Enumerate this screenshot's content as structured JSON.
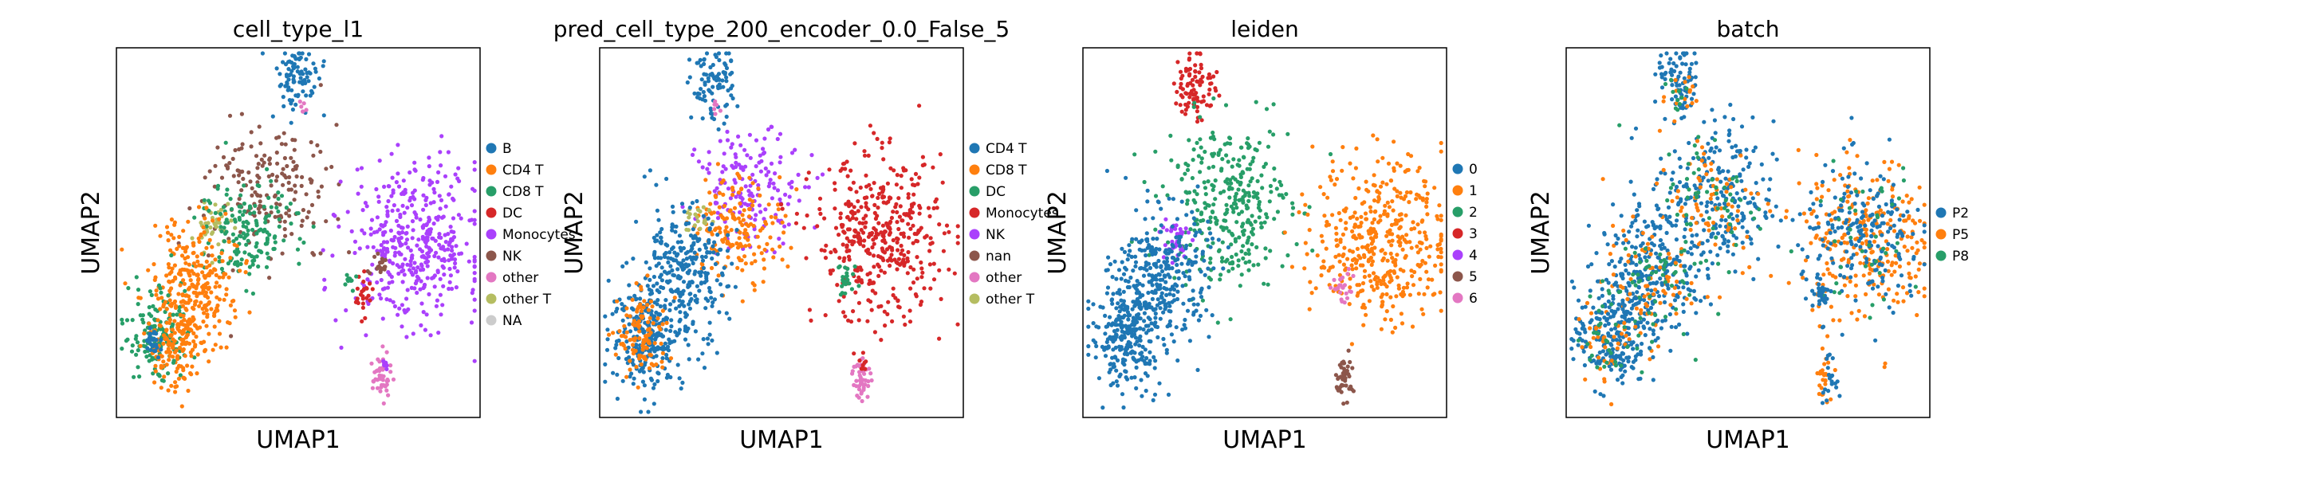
{
  "chart_data": [
    {
      "type": "scatter",
      "title": "cell_type_l1",
      "xlabel": "UMAP1",
      "ylabel": "UMAP2",
      "legend": {
        "position": "right",
        "entries": [
          {
            "label": "B",
            "color": "#1f77b4"
          },
          {
            "label": "CD4 T",
            "color": "#ff7f0e"
          },
          {
            "label": "CD8 T",
            "color": "#279e68"
          },
          {
            "label": "DC",
            "color": "#d62728"
          },
          {
            "label": "Monocytes",
            "color": "#aa40fc"
          },
          {
            "label": "NK",
            "color": "#8c564b"
          },
          {
            "label": "other",
            "color": "#e377c2"
          },
          {
            "label": "other T",
            "color": "#b5bd61"
          },
          {
            "label": "NA",
            "color": "#cccccc"
          }
        ]
      },
      "clusters": [
        {
          "color": "#1f77b4",
          "rx": 0.5,
          "ry": 0.92,
          "w": 0.06,
          "h": 0.1,
          "n": 90
        },
        {
          "color": "#e377c2",
          "rx": 0.51,
          "ry": 0.84,
          "w": 0.01,
          "h": 0.03,
          "n": 6
        },
        {
          "color": "#8c564b",
          "rx": 0.42,
          "ry": 0.62,
          "w": 0.17,
          "h": 0.17,
          "n": 180
        },
        {
          "color": "#b5bd61",
          "rx": 0.27,
          "ry": 0.52,
          "w": 0.06,
          "h": 0.06,
          "n": 40
        },
        {
          "color": "#279e68",
          "rx": 0.36,
          "ry": 0.5,
          "w": 0.14,
          "h": 0.14,
          "n": 160
        },
        {
          "color": "#ff7f0e",
          "rx": 0.22,
          "ry": 0.36,
          "w": 0.12,
          "h": 0.18,
          "n": 260
        },
        {
          "color": "#279e68",
          "rx": 0.11,
          "ry": 0.22,
          "w": 0.08,
          "h": 0.12,
          "n": 150
        },
        {
          "color": "#ff7f0e",
          "rx": 0.16,
          "ry": 0.2,
          "w": 0.08,
          "h": 0.13,
          "n": 160
        },
        {
          "color": "#1f77b4",
          "rx": 0.1,
          "ry": 0.2,
          "w": 0.02,
          "h": 0.05,
          "n": 30
        },
        {
          "color": "#aa40fc",
          "rx": 0.82,
          "ry": 0.47,
          "w": 0.18,
          "h": 0.21,
          "n": 420
        },
        {
          "color": "#8c564b",
          "rx": 0.72,
          "ry": 0.41,
          "w": 0.03,
          "h": 0.05,
          "n": 20
        },
        {
          "color": "#d62728",
          "rx": 0.68,
          "ry": 0.33,
          "w": 0.025,
          "h": 0.05,
          "n": 25
        },
        {
          "color": "#279e68",
          "rx": 0.64,
          "ry": 0.37,
          "w": 0.02,
          "h": 0.03,
          "n": 10
        },
        {
          "color": "#e377c2",
          "rx": 0.73,
          "ry": 0.11,
          "w": 0.025,
          "h": 0.06,
          "n": 45
        },
        {
          "color": "#aa40fc",
          "rx": 0.74,
          "ry": 0.14,
          "w": 0.01,
          "h": 0.03,
          "n": 10
        }
      ]
    },
    {
      "type": "scatter",
      "title": "pred_cell_type_200_encoder_0.0_False_5",
      "xlabel": "UMAP1",
      "ylabel": "UMAP2",
      "legend": {
        "position": "right",
        "entries": [
          {
            "label": "CD4 T",
            "color": "#1f77b4"
          },
          {
            "label": "CD8 T",
            "color": "#ff7f0e"
          },
          {
            "label": "DC",
            "color": "#279e68"
          },
          {
            "label": "Monocytes",
            "color": "#d62728"
          },
          {
            "label": "NK",
            "color": "#aa40fc"
          },
          {
            "label": "nan",
            "color": "#8c564b"
          },
          {
            "label": "other",
            "color": "#e377c2"
          },
          {
            "label": "other T",
            "color": "#b5bd61"
          }
        ]
      },
      "clusters": [
        {
          "color": "#1f77b4",
          "rx": 0.31,
          "ry": 0.9,
          "w": 0.06,
          "h": 0.1,
          "n": 90
        },
        {
          "color": "#e377c2",
          "rx": 0.32,
          "ry": 0.84,
          "w": 0.01,
          "h": 0.03,
          "n": 6
        },
        {
          "color": "#aa40fc",
          "rx": 0.42,
          "ry": 0.62,
          "w": 0.15,
          "h": 0.15,
          "n": 170
        },
        {
          "color": "#ff7f0e",
          "rx": 0.38,
          "ry": 0.52,
          "w": 0.13,
          "h": 0.14,
          "n": 170
        },
        {
          "color": "#b5bd61",
          "rx": 0.27,
          "ry": 0.53,
          "w": 0.04,
          "h": 0.04,
          "n": 20
        },
        {
          "color": "#1f77b4",
          "rx": 0.22,
          "ry": 0.38,
          "w": 0.13,
          "h": 0.19,
          "n": 300
        },
        {
          "color": "#1f77b4",
          "rx": 0.13,
          "ry": 0.22,
          "w": 0.1,
          "h": 0.14,
          "n": 240
        },
        {
          "color": "#ff7f0e",
          "rx": 0.12,
          "ry": 0.22,
          "w": 0.07,
          "h": 0.12,
          "n": 110
        },
        {
          "color": "#d62728",
          "rx": 0.77,
          "ry": 0.48,
          "w": 0.18,
          "h": 0.22,
          "n": 420
        },
        {
          "color": "#279e68",
          "rx": 0.68,
          "ry": 0.37,
          "w": 0.03,
          "h": 0.05,
          "n": 25
        },
        {
          "color": "#e377c2",
          "rx": 0.72,
          "ry": 0.11,
          "w": 0.025,
          "h": 0.06,
          "n": 45
        },
        {
          "color": "#d62728",
          "rx": 0.73,
          "ry": 0.15,
          "w": 0.01,
          "h": 0.03,
          "n": 8
        }
      ]
    },
    {
      "type": "scatter",
      "title": "leiden",
      "xlabel": "UMAP1",
      "ylabel": "UMAP2",
      "legend": {
        "position": "right",
        "entries": [
          {
            "label": "0",
            "color": "#1f77b4"
          },
          {
            "label": "1",
            "color": "#ff7f0e"
          },
          {
            "label": "2",
            "color": "#279e68"
          },
          {
            "label": "3",
            "color": "#d62728"
          },
          {
            "label": "4",
            "color": "#aa40fc"
          },
          {
            "label": "5",
            "color": "#8c564b"
          },
          {
            "label": "6",
            "color": "#e377c2"
          }
        ]
      },
      "clusters": [
        {
          "color": "#d62728",
          "rx": 0.31,
          "ry": 0.9,
          "w": 0.06,
          "h": 0.1,
          "n": 90
        },
        {
          "color": "#279e68",
          "rx": 0.4,
          "ry": 0.58,
          "w": 0.17,
          "h": 0.22,
          "n": 330
        },
        {
          "color": "#aa40fc",
          "rx": 0.25,
          "ry": 0.48,
          "w": 0.04,
          "h": 0.07,
          "n": 40
        },
        {
          "color": "#1f77b4",
          "rx": 0.22,
          "ry": 0.38,
          "w": 0.13,
          "h": 0.18,
          "n": 300
        },
        {
          "color": "#1f77b4",
          "rx": 0.12,
          "ry": 0.22,
          "w": 0.1,
          "h": 0.14,
          "n": 260
        },
        {
          "color": "#ff7f0e",
          "rx": 0.82,
          "ry": 0.48,
          "w": 0.18,
          "h": 0.22,
          "n": 420
        },
        {
          "color": "#e377c2",
          "rx": 0.71,
          "ry": 0.35,
          "w": 0.035,
          "h": 0.05,
          "n": 25
        },
        {
          "color": "#8c564b",
          "rx": 0.72,
          "ry": 0.11,
          "w": 0.025,
          "h": 0.06,
          "n": 45
        }
      ]
    },
    {
      "type": "scatter",
      "title": "batch",
      "xlabel": "UMAP1",
      "ylabel": "UMAP2",
      "legend": {
        "position": "right",
        "entries": [
          {
            "label": "P2",
            "color": "#1f77b4"
          },
          {
            "label": "P5",
            "color": "#ff7f0e"
          },
          {
            "label": "P8",
            "color": "#279e68"
          }
        ]
      },
      "clusters": [
        {
          "color": "#1f77b4",
          "rx": 0.31,
          "ry": 0.9,
          "w": 0.06,
          "h": 0.1,
          "n": 80
        },
        {
          "color": "#ff7f0e",
          "rx": 0.32,
          "ry": 0.88,
          "w": 0.05,
          "h": 0.08,
          "n": 15
        },
        {
          "color": "#279e68",
          "rx": 0.31,
          "ry": 0.87,
          "w": 0.04,
          "h": 0.07,
          "n": 10
        },
        {
          "color": "#1f77b4",
          "rx": 0.4,
          "ry": 0.58,
          "w": 0.17,
          "h": 0.22,
          "n": 260
        },
        {
          "color": "#ff7f0e",
          "rx": 0.4,
          "ry": 0.58,
          "w": 0.15,
          "h": 0.2,
          "n": 80
        },
        {
          "color": "#279e68",
          "rx": 0.4,
          "ry": 0.58,
          "w": 0.15,
          "h": 0.2,
          "n": 60
        },
        {
          "color": "#1f77b4",
          "rx": 0.22,
          "ry": 0.38,
          "w": 0.13,
          "h": 0.18,
          "n": 240
        },
        {
          "color": "#ff7f0e",
          "rx": 0.22,
          "ry": 0.36,
          "w": 0.12,
          "h": 0.16,
          "n": 70
        },
        {
          "color": "#279e68",
          "rx": 0.22,
          "ry": 0.36,
          "w": 0.12,
          "h": 0.16,
          "n": 50
        },
        {
          "color": "#1f77b4",
          "rx": 0.12,
          "ry": 0.22,
          "w": 0.1,
          "h": 0.14,
          "n": 200
        },
        {
          "color": "#ff7f0e",
          "rx": 0.12,
          "ry": 0.22,
          "w": 0.09,
          "h": 0.12,
          "n": 40
        },
        {
          "color": "#279e68",
          "rx": 0.12,
          "ry": 0.22,
          "w": 0.09,
          "h": 0.12,
          "n": 30
        },
        {
          "color": "#ff7f0e",
          "rx": 0.82,
          "ry": 0.48,
          "w": 0.18,
          "h": 0.22,
          "n": 260
        },
        {
          "color": "#1f77b4",
          "rx": 0.82,
          "ry": 0.48,
          "w": 0.17,
          "h": 0.2,
          "n": 200
        },
        {
          "color": "#279e68",
          "rx": 0.82,
          "ry": 0.48,
          "w": 0.16,
          "h": 0.2,
          "n": 40
        },
        {
          "color": "#1f77b4",
          "rx": 0.7,
          "ry": 0.35,
          "w": 0.03,
          "h": 0.05,
          "n": 25
        },
        {
          "color": "#ff7f0e",
          "rx": 0.71,
          "ry": 0.11,
          "w": 0.02,
          "h": 0.06,
          "n": 25
        },
        {
          "color": "#1f77b4",
          "rx": 0.72,
          "ry": 0.11,
          "w": 0.02,
          "h": 0.06,
          "n": 20
        }
      ]
    }
  ]
}
